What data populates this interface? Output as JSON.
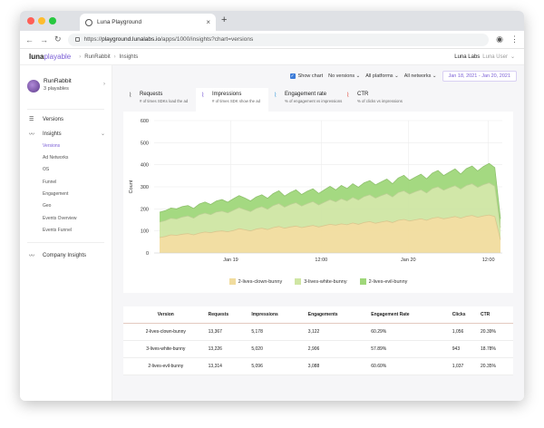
{
  "browser": {
    "tab_title": "Luna Playground",
    "url_prefix": "https://",
    "url_host": "playground.lunalabs.io",
    "url_path": "/apps/1000/insights?chart=versions"
  },
  "app": {
    "logo_main": "luna",
    "logo_accent": "playable",
    "breadcrumb": [
      "RunRabbit",
      "Insights"
    ],
    "org_name": "Luna Labs",
    "user_name": "Luna User"
  },
  "sidebar": {
    "project_name": "RunRabbit",
    "project_sub": "3 playables",
    "versions_label": "Versions",
    "insights_label": "Insights",
    "subitems": [
      "Versions",
      "Ad Networks",
      "OS",
      "Funnel",
      "Engagement",
      "Geo",
      "Events Overview",
      "Events Funnel"
    ],
    "company_label": "Company Insights"
  },
  "controls": {
    "show_chart": "Show chart",
    "versions_dd": "No versions",
    "platforms_dd": "All platforms",
    "networks_dd": "All networks",
    "date_range": "Jan 18, 2021 - Jan 20, 2021"
  },
  "metrics": [
    {
      "title": "Requests",
      "sub": "# of times SDKs load the ad",
      "color": "#555555"
    },
    {
      "title": "Impressions",
      "sub": "# of times SDK show the ad",
      "color": "#7b5fd6"
    },
    {
      "title": "Engagement rate",
      "sub": "% of engagement vs impressions",
      "color": "#4aa3df"
    },
    {
      "title": "CTR",
      "sub": "% of clicks vs impressions",
      "color": "#e2574c"
    }
  ],
  "chart_data": {
    "type": "area",
    "ylabel": "Count",
    "ylim": [
      0,
      600
    ],
    "yticks": [
      0,
      100,
      200,
      300,
      400,
      500,
      600
    ],
    "xticks": [
      "Jan 19",
      "12:00",
      "Jan 20",
      "12:00"
    ],
    "series": [
      {
        "name": "2-lives-clown-bunny",
        "color": "#f1dc9e",
        "values": [
          70,
          75,
          82,
          80,
          85,
          88,
          82,
          90,
          95,
          92,
          98,
          100,
          96,
          102,
          110,
          105,
          100,
          108,
          112,
          106,
          115,
          120,
          112,
          118,
          122,
          115,
          120,
          125,
          118,
          124,
          130,
          126,
          132,
          128,
          136,
          130,
          138,
          142,
          135,
          140,
          145,
          138,
          148,
          152,
          145,
          150,
          155,
          148,
          158,
          162,
          155,
          160,
          165,
          158,
          166,
          170,
          162,
          168,
          172,
          165,
          60
        ]
      },
      {
        "name": "3-lives-white-bunny",
        "color": "#cfe6a3",
        "values": [
          70,
          72,
          76,
          74,
          78,
          80,
          76,
          84,
          86,
          82,
          88,
          90,
          86,
          92,
          96,
          92,
          88,
          94,
          98,
          92,
          100,
          104,
          96,
          102,
          106,
          98,
          104,
          108,
          100,
          106,
          112,
          106,
          114,
          108,
          116,
          110,
          118,
          122,
          114,
          120,
          124,
          116,
          126,
          130,
          122,
          128,
          132,
          124,
          134,
          138,
          130,
          136,
          140,
          132,
          140,
          144,
          136,
          142,
          146,
          138,
          55
        ]
      },
      {
        "name": "2-lives-evil-bunny",
        "color": "#9fd77a",
        "values": [
          45,
          45,
          46,
          46,
          48,
          47,
          44,
          48,
          50,
          46,
          50,
          52,
          48,
          52,
          54,
          52,
          48,
          52,
          54,
          50,
          54,
          58,
          50,
          54,
          58,
          52,
          56,
          58,
          52,
          56,
          60,
          54,
          60,
          56,
          62,
          58,
          62,
          64,
          60,
          62,
          66,
          60,
          66,
          70,
          62,
          66,
          70,
          64,
          70,
          74,
          66,
          70,
          76,
          68,
          76,
          80,
          74,
          82,
          88,
          84,
          40
        ]
      }
    ]
  },
  "table": {
    "headers": [
      "Version",
      "Requests",
      "Impressions",
      "Engagements",
      "Engagement Rate",
      "Clicks",
      "CTR"
    ],
    "rows": [
      [
        "2-lives-clown-bunny",
        "13,367",
        "5,178",
        "3,122",
        "60.29%",
        "1,056",
        "20.39%"
      ],
      [
        "3-lives-white-bunny",
        "13,226",
        "5,020",
        "2,906",
        "57.89%",
        "943",
        "18.78%"
      ],
      [
        "2-lives-evil-bunny",
        "13,314",
        "5,096",
        "3,088",
        "60.60%",
        "1,037",
        "20.35%"
      ]
    ]
  }
}
